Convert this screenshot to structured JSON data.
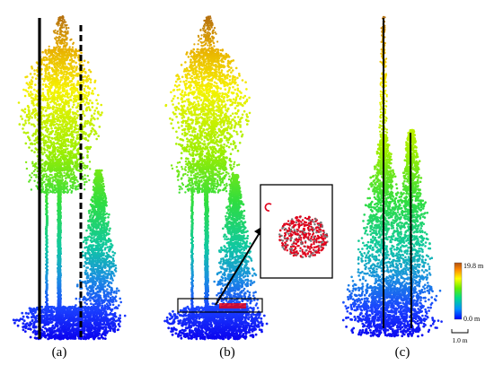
{
  "panels": [
    {
      "label": "(a)"
    },
    {
      "label": "(b)"
    },
    {
      "label": "(c)"
    }
  ],
  "colorbar": {
    "max_label": "19.8 m",
    "min_label": "0.0 m",
    "colors": [
      "#0000ff",
      "#0090ff",
      "#00dd88",
      "#66ee00",
      "#ffff00",
      "#ff8800",
      "#b05010"
    ]
  },
  "scale_bar": {
    "label": "1.0 m"
  },
  "colors": {
    "trunk_line": "#000000",
    "highlight": "#e0001a",
    "box": "#000000"
  }
}
